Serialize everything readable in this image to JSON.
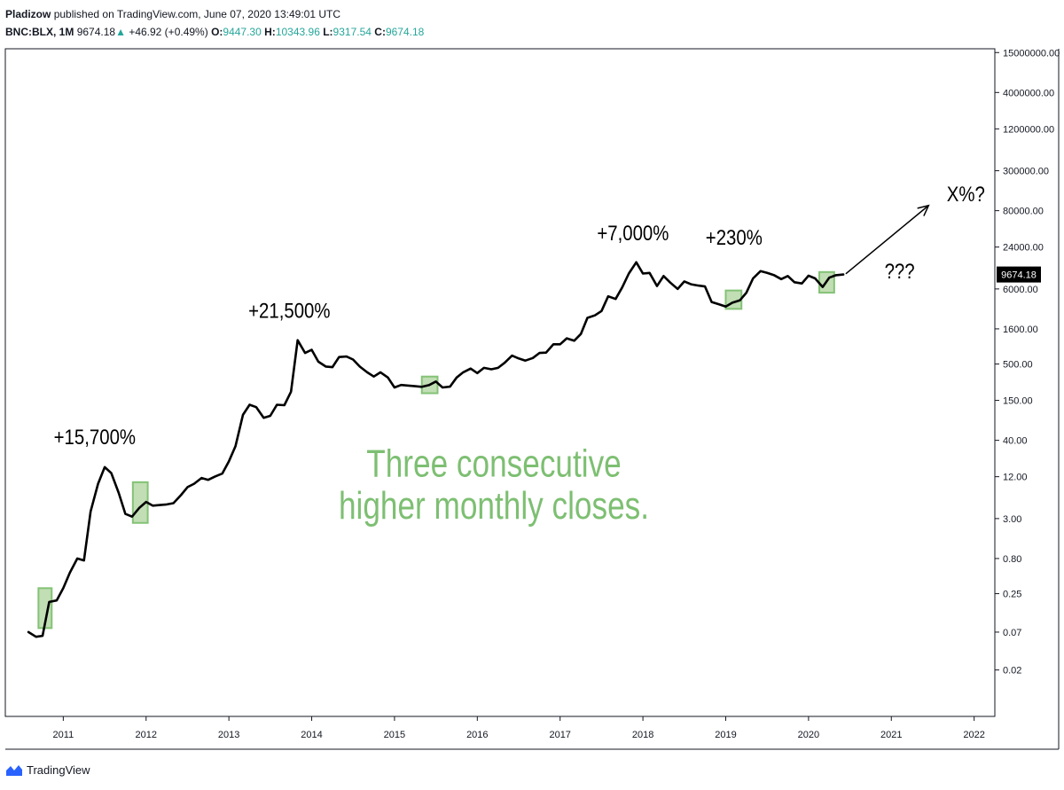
{
  "header": {
    "author": "Pladizow",
    "published_text": "published on TradingView.com, June 07, 2020 13:49:01 UTC",
    "symbol": "BNC:BLX, 1M",
    "price": "9674.18",
    "change_arrow": "▲",
    "change": "+46.92 (+0.49%)",
    "open_label": "O:",
    "open": "9447.30",
    "high_label": "H:",
    "high": "10343.96",
    "low_label": "L:",
    "low": "9317.54",
    "close_label": "C:",
    "close": "9674.18"
  },
  "footer": {
    "brand": "TradingView",
    "icon": "tradingview-logo-icon"
  },
  "colors": {
    "line": "#000000",
    "highlight_fill": "#b7d9a8",
    "highlight_stroke": "#6fb85f",
    "annotation_green": "#7dbf72",
    "axis": "#131722",
    "price_tag_bg": "#000000",
    "change_green": "#26a69a"
  },
  "chart_data": {
    "type": "line",
    "y_scale": "log",
    "x_range": [
      2010.3,
      2022.25
    ],
    "y_range": [
      0.0043,
      17000000
    ],
    "x_ticks": [
      "2011",
      "2012",
      "2013",
      "2014",
      "2015",
      "2016",
      "2017",
      "2018",
      "2019",
      "2020",
      "2021",
      "2022"
    ],
    "y_ticks": [
      "15000000.00",
      "4000000.00",
      "1200000.00",
      "300000.00",
      "80000.00",
      "24000.00",
      "6000.00",
      "1600.00",
      "500.00",
      "150.00",
      "40.00",
      "12.00",
      "3.00",
      "0.80",
      "0.25",
      "0.07",
      "0.02"
    ],
    "last_price_tag": "9674.18",
    "series": [
      {
        "x": [
          2010.58,
          2010.67,
          2010.75,
          2010.83,
          2010.92,
          2011.0,
          2011.08,
          2011.17,
          2011.25,
          2011.33,
          2011.42,
          2011.5,
          2011.58,
          2011.67,
          2011.75,
          2011.83,
          2011.92,
          2012.0,
          2012.08,
          2012.17,
          2012.25,
          2012.33,
          2012.42,
          2012.5,
          2012.58,
          2012.67,
          2012.75,
          2012.83,
          2012.92,
          2013.0,
          2013.08,
          2013.17,
          2013.25,
          2013.33,
          2013.42,
          2013.5,
          2013.58,
          2013.67,
          2013.75,
          2013.83,
          2013.92,
          2014.0,
          2014.08,
          2014.17,
          2014.25,
          2014.33,
          2014.42,
          2014.5,
          2014.58,
          2014.67,
          2014.75,
          2014.83,
          2014.92,
          2015.0,
          2015.08,
          2015.17,
          2015.25,
          2015.33,
          2015.42,
          2015.5,
          2015.58,
          2015.67,
          2015.75,
          2015.83,
          2015.92,
          2016.0,
          2016.08,
          2016.17,
          2016.25,
          2016.33,
          2016.42,
          2016.5,
          2016.58,
          2016.67,
          2016.75,
          2016.83,
          2016.92,
          2017.0,
          2017.08,
          2017.17,
          2017.25,
          2017.33,
          2017.42,
          2017.5,
          2017.58,
          2017.67,
          2017.75,
          2017.83,
          2017.92,
          2018.0,
          2018.08,
          2018.17,
          2018.25,
          2018.33,
          2018.42,
          2018.5,
          2018.58,
          2018.67,
          2018.75,
          2018.83,
          2018.92,
          2019.0,
          2019.08,
          2019.17,
          2019.25,
          2019.33,
          2019.42,
          2019.5,
          2019.58,
          2019.67,
          2019.75,
          2019.83,
          2019.92,
          2020.0,
          2020.08,
          2020.17,
          2020.25,
          2020.33,
          2020.42
        ],
        "y": [
          0.07,
          0.06,
          0.062,
          0.19,
          0.2,
          0.3,
          0.5,
          0.8,
          0.75,
          3.8,
          9.5,
          16.5,
          13.5,
          7.0,
          3.5,
          3.2,
          4.3,
          5.2,
          4.6,
          4.7,
          4.8,
          5.0,
          6.5,
          8.5,
          9.5,
          11.5,
          10.8,
          12.0,
          13.3,
          20,
          33,
          93,
          130,
          120,
          84,
          90,
          130,
          128,
          200,
          1100,
          720,
          800,
          540,
          460,
          450,
          630,
          640,
          580,
          460,
          380,
          330,
          380,
          320,
          230,
          250,
          245,
          240,
          235,
          250,
          280,
          230,
          236,
          320,
          380,
          430,
          370,
          440,
          420,
          440,
          520,
          660,
          600,
          560,
          610,
          720,
          730,
          960,
          960,
          1170,
          1080,
          1350,
          2300,
          2500,
          2890,
          4700,
          4300,
          6300,
          10000,
          14500,
          10000,
          10200,
          6600,
          9200,
          7400,
          6000,
          7700,
          7000,
          6700,
          6500,
          3900,
          3600,
          3350,
          3800,
          4100,
          5300,
          8500,
          10800,
          10200,
          9500,
          8300,
          9200,
          7500,
          7200,
          9300,
          8500,
          6400,
          8700,
          9450,
          9674.18
        ]
      }
    ],
    "highlight_zones": [
      {
        "x_start": 2010.7,
        "x_end": 2010.86,
        "y_low": 0.08,
        "y_high": 0.3
      },
      {
        "x_start": 2011.84,
        "x_end": 2012.02,
        "y_low": 2.6,
        "y_high": 10
      },
      {
        "x_start": 2015.33,
        "x_end": 2015.52,
        "y_low": 190,
        "y_high": 330
      },
      {
        "x_start": 2019.0,
        "x_end": 2019.19,
        "y_low": 3100,
        "y_high": 5700
      },
      {
        "x_start": 2020.13,
        "x_end": 2020.31,
        "y_low": 5300,
        "y_high": 10500
      }
    ],
    "annotations": [
      {
        "text": "+15,700%",
        "x": 2011.38,
        "y": 35,
        "size": 24,
        "color": "black"
      },
      {
        "text": "+21,500%",
        "x": 2013.73,
        "y": 2300,
        "size": 24,
        "color": "black"
      },
      {
        "text": "+7,000%",
        "x": 2017.88,
        "y": 30000,
        "size": 24,
        "color": "black"
      },
      {
        "text": "+230%",
        "x": 2019.1,
        "y": 26000,
        "size": 24,
        "color": "black"
      },
      {
        "text": "???",
        "x": 2021.1,
        "y": 8500,
        "size": 24,
        "color": "black"
      },
      {
        "text": "X%?",
        "x": 2021.9,
        "y": 110000,
        "size": 24,
        "color": "black"
      },
      {
        "text": "Three consecutive",
        "x": 2016.2,
        "y": 12,
        "size": 44,
        "color": "green"
      },
      {
        "text": "higher monthly closes.",
        "x": 2016.2,
        "y": 3.0,
        "size": 44,
        "color": "green"
      }
    ],
    "arrow": {
      "from": [
        2020.45,
        9900
      ],
      "to": [
        2021.45,
        95000
      ]
    }
  }
}
